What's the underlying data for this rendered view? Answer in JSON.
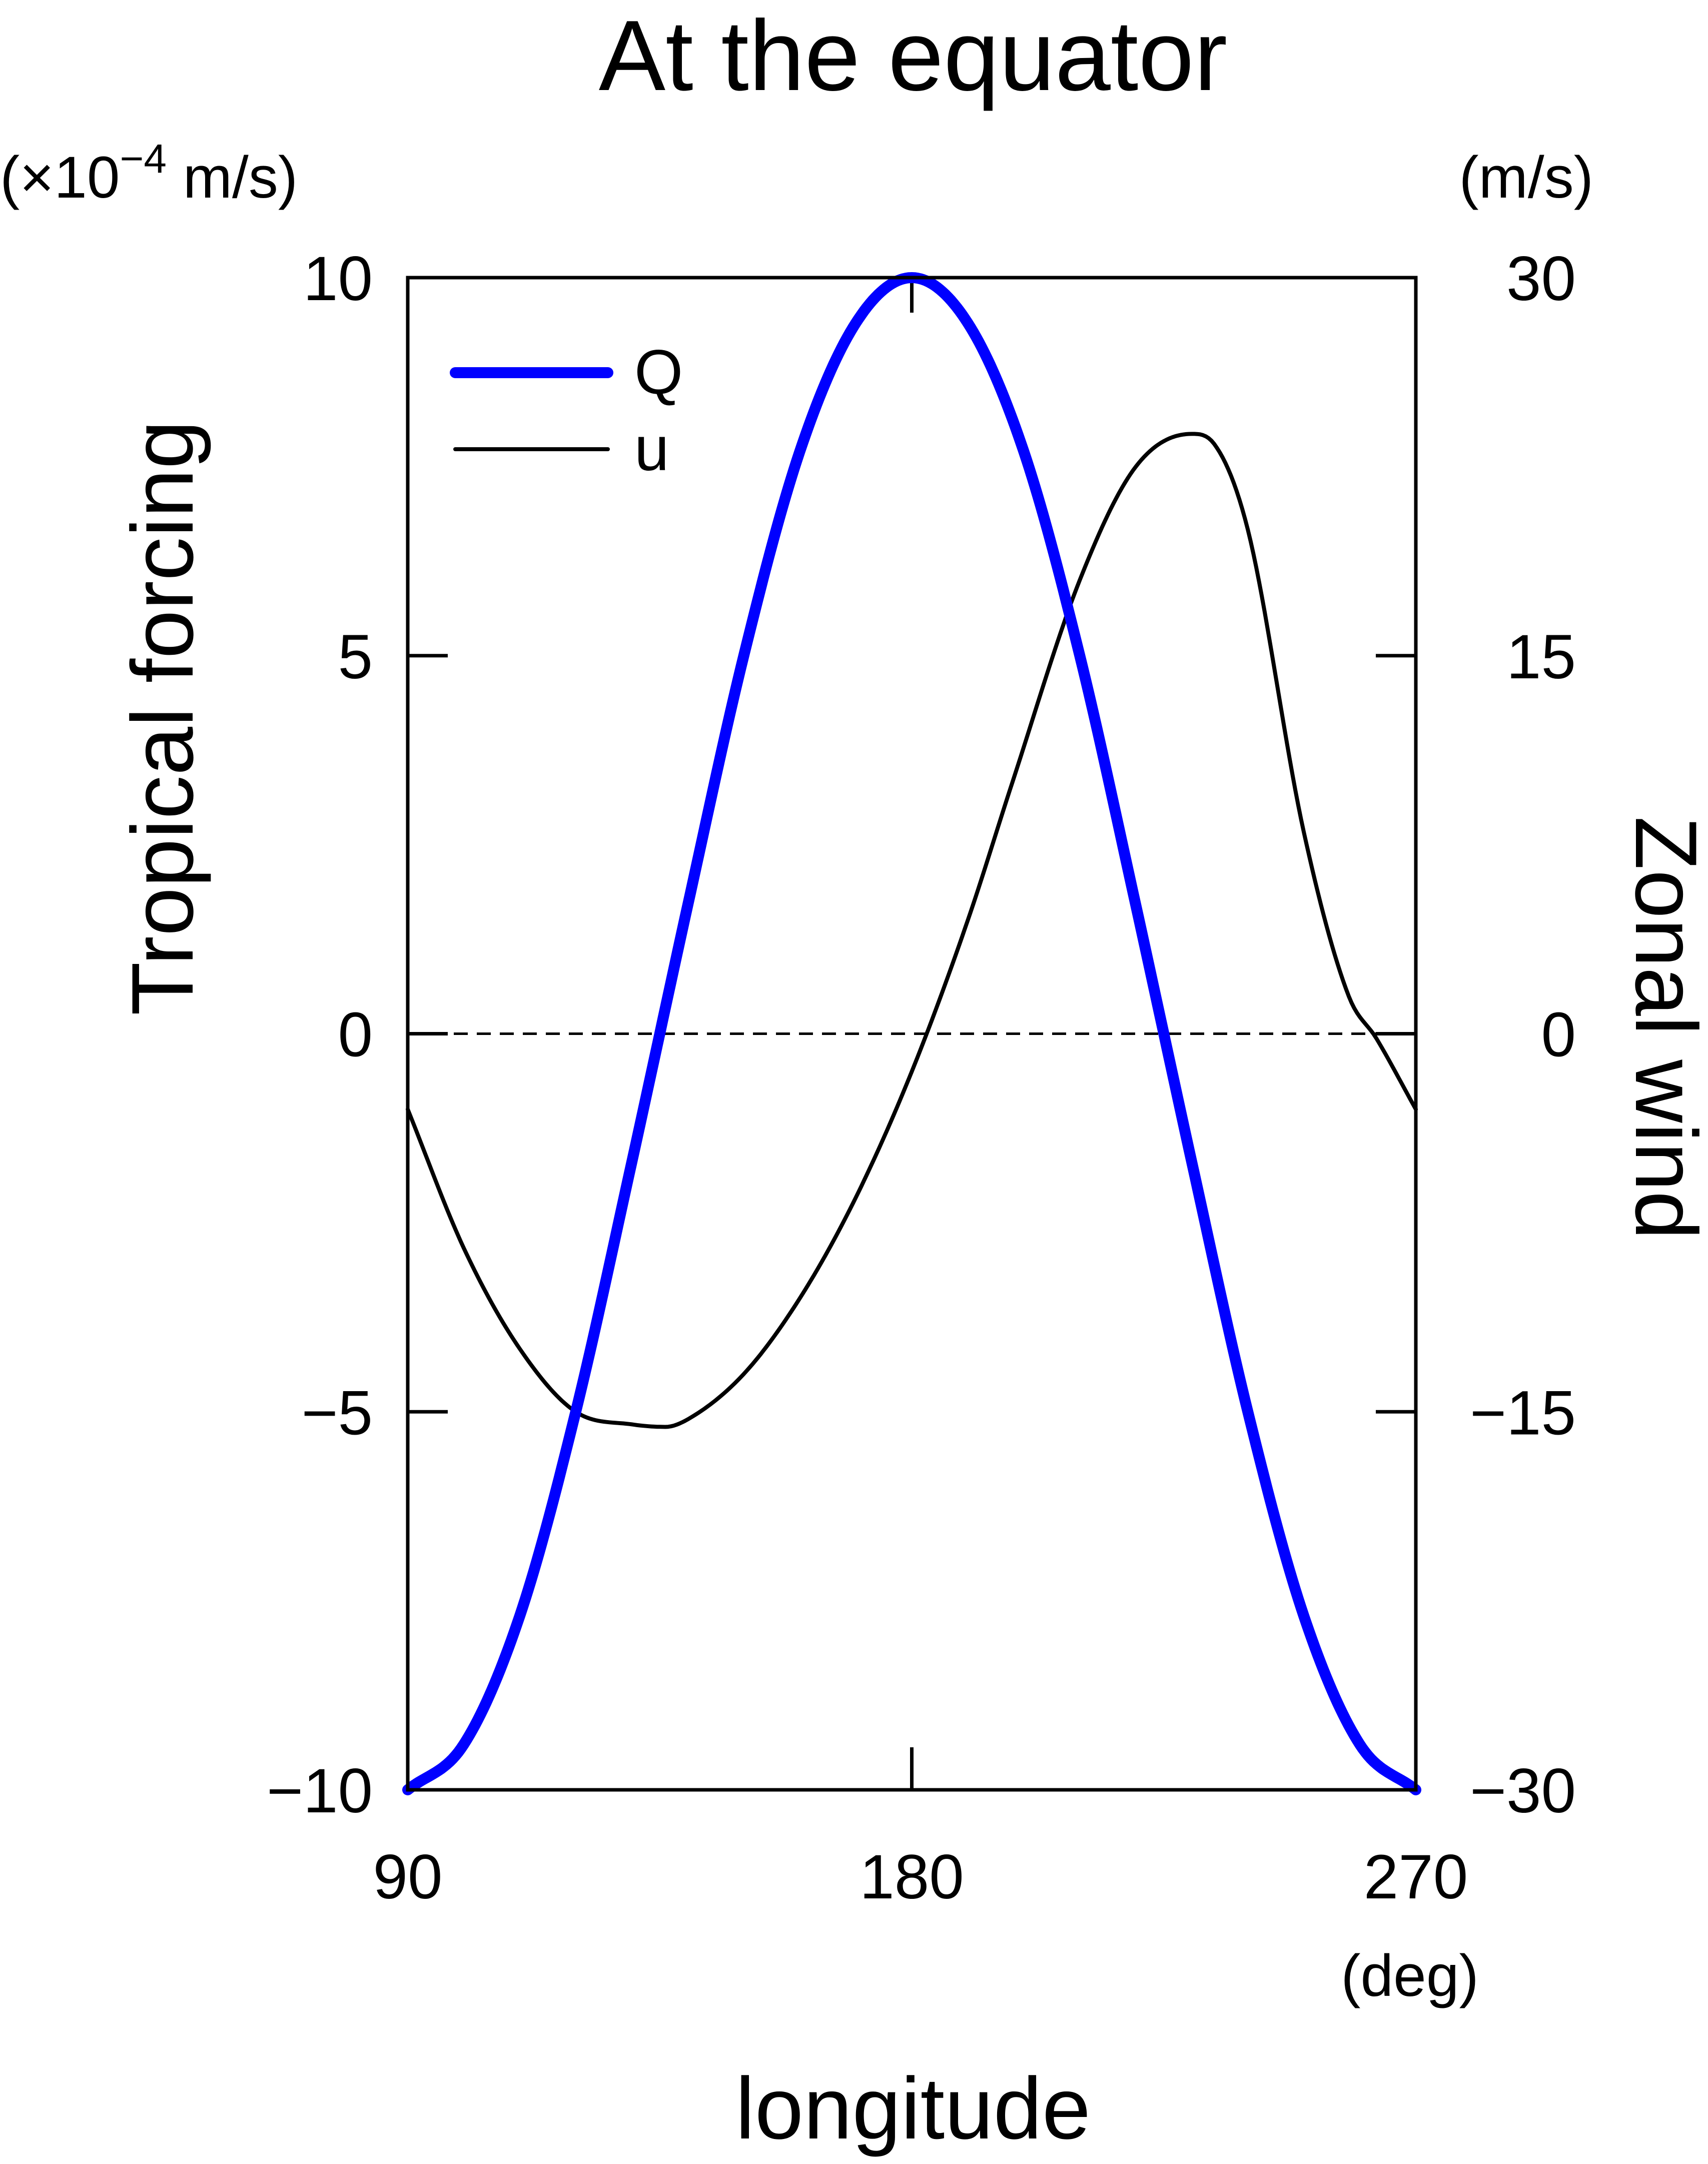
{
  "chart_data": {
    "type": "line",
    "title": "At the equator",
    "xlabel": "longitude",
    "x_unit": "(deg)",
    "xlim": [
      90,
      270
    ],
    "x_ticks": [
      90,
      180,
      270
    ],
    "x_tick_labels": [
      "90",
      "180",
      "270"
    ],
    "ylabel_left": "Tropical forcing",
    "y_left_unit": "(×10",
    "y_left_unit_exp": "−4",
    "y_left_unit_rest": " m/s)",
    "ylim_left": [
      -10,
      10
    ],
    "y_left_ticks": [
      -10,
      -5,
      0,
      5,
      10
    ],
    "y_left_tick_labels": [
      "−10",
      "−5",
      "0",
      "5",
      "10"
    ],
    "ylabel_right": "Zonal wind",
    "y_right_unit": "(m/s)",
    "ylim_right": [
      -30,
      30
    ],
    "y_right_ticks": [
      -30,
      -15,
      0,
      15,
      30
    ],
    "y_right_tick_labels": [
      "−30",
      "−15",
      "0",
      "15",
      "30"
    ],
    "grid": false,
    "zero_line": "dashed",
    "legend": {
      "position": "top-left",
      "entries": [
        "Q",
        "u"
      ]
    },
    "series": [
      {
        "name": "Q",
        "axis": "left",
        "color": "#0000ff",
        "x": [
          90,
          100,
          110,
          120,
          130,
          135,
          140,
          150,
          160,
          170,
          180,
          190,
          200,
          210,
          220,
          225,
          230,
          240,
          250,
          260,
          270
        ],
        "values": [
          -10,
          -9.4,
          -7.7,
          -5.0,
          -1.7,
          0,
          1.7,
          5.0,
          7.7,
          9.4,
          10,
          9.4,
          7.7,
          5.0,
          1.7,
          0,
          -1.7,
          -5.0,
          -7.7,
          -9.4,
          -10
        ]
      },
      {
        "name": "u",
        "axis": "right",
        "color": "#000000",
        "x": [
          90,
          100,
          110,
          120,
          130,
          136,
          140,
          150,
          160,
          170,
          180,
          190,
          198,
          210,
          220,
          230,
          234,
          240,
          250,
          258,
          263,
          270
        ],
        "values": [
          -3,
          -8.5,
          -12.5,
          -15,
          -15.5,
          -15.6,
          -15.3,
          -13.5,
          -10.5,
          -6.5,
          -1.5,
          4.5,
          10.0,
          18.0,
          22.5,
          23.8,
          23.4,
          20.0,
          8.0,
          1.5,
          -0.2,
          -3
        ]
      }
    ]
  }
}
